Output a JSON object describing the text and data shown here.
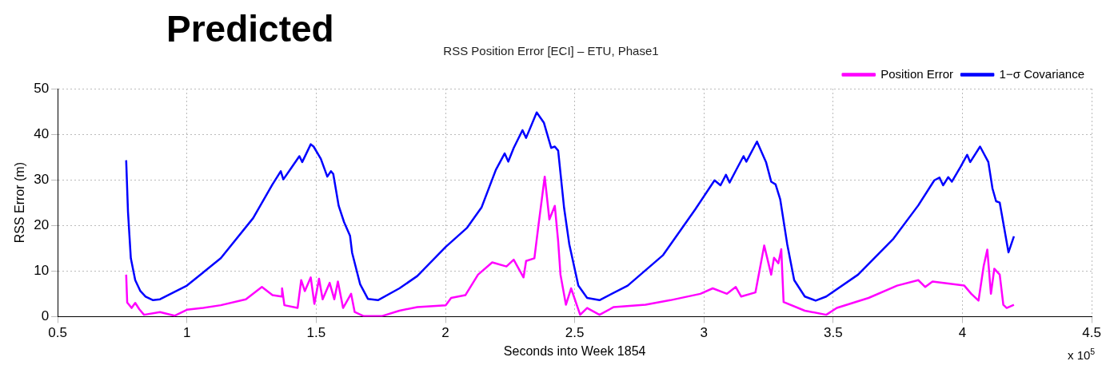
{
  "chart_data": {
    "type": "line",
    "title": "RSS Position Error [ECI] – ETU, Phase1",
    "xlabel": "Seconds into Week 1854",
    "ylabel": "RSS Error (m)",
    "annotations": [
      "Predicted",
      "x 10$^{5}$"
    ],
    "xlim": [
      0.5,
      4.5
    ],
    "xticks": [
      0.5,
      1,
      1.5,
      2,
      2.5,
      3,
      3.5,
      4,
      4.5
    ],
    "ylim": [
      0,
      50
    ],
    "yticks": [
      0,
      10,
      20,
      30,
      40,
      50
    ],
    "grid": true,
    "legend": "top right",
    "line_style": "solid",
    "series": [
      {
        "name": "Position Error",
        "color": "#ff00ff",
        "x": [
          0.765,
          0.769,
          0.786,
          0.8,
          0.816,
          0.834,
          0.896,
          0.952,
          1.0,
          1.062,
          1.131,
          1.228,
          1.29,
          1.331,
          1.366,
          1.368,
          1.377,
          1.428,
          1.442,
          1.456,
          1.479,
          1.493,
          1.511,
          1.525,
          1.552,
          1.57,
          1.584,
          1.604,
          1.635,
          1.649,
          1.684,
          1.753,
          1.822,
          1.891,
          2.001,
          2.022,
          2.077,
          2.126,
          2.181,
          2.236,
          2.264,
          2.302,
          2.312,
          2.344,
          2.36,
          2.384,
          2.402,
          2.423,
          2.436,
          2.445,
          2.466,
          2.486,
          2.521,
          2.548,
          2.596,
          2.651,
          2.774,
          2.87,
          2.986,
          3.034,
          3.089,
          3.123,
          3.144,
          3.199,
          3.233,
          3.26,
          3.271,
          3.288,
          3.299,
          3.308,
          3.39,
          3.473,
          3.514,
          3.637,
          3.747,
          3.829,
          3.856,
          3.884,
          4.007,
          4.034,
          4.062,
          4.082,
          4.096,
          4.11,
          4.123,
          4.144,
          4.158,
          4.171,
          4.199
        ],
        "values": [
          9.2,
          3.1,
          1.9,
          3,
          1.6,
          0.4,
          1,
          0.2,
          1.5,
          1.9,
          2.5,
          3.8,
          6.5,
          4.7,
          4.4,
          6.2,
          2.5,
          1.9,
          8,
          5.6,
          8.6,
          2.8,
          8.3,
          3.8,
          7.4,
          3.8,
          7.7,
          1.9,
          5,
          1,
          0.1,
          0.1,
          1.3,
          2.1,
          2.5,
          4.1,
          4.7,
          9.2,
          11.9,
          11,
          12.5,
          8.6,
          12.2,
          12.8,
          20.1,
          30.7,
          21.3,
          24.3,
          16.5,
          9.2,
          2.6,
          6.2,
          0.4,
          1.9,
          0.4,
          2.1,
          2.6,
          3.6,
          5,
          6.2,
          5,
          6.5,
          4.4,
          5.3,
          15.6,
          9.2,
          12.9,
          11.7,
          14.8,
          3.2,
          1.3,
          0.4,
          1.9,
          4.1,
          6.8,
          8,
          6.5,
          7.7,
          6.8,
          5,
          3.5,
          11.1,
          14.7,
          5,
          10.5,
          9.2,
          2.6,
          1.9,
          2.6
        ]
      },
      {
        "name": "1−σ Covariance",
        "color": "#0000ff",
        "x": [
          0.765,
          0.772,
          0.783,
          0.8,
          0.82,
          0.84,
          0.869,
          0.896,
          1.0,
          1.131,
          1.256,
          1.33,
          1.363,
          1.373,
          1.4,
          1.435,
          1.446,
          1.479,
          1.49,
          1.518,
          1.543,
          1.557,
          1.566,
          1.587,
          1.608,
          1.631,
          1.639,
          1.67,
          1.7,
          1.739,
          1.822,
          1.891,
          2.001,
          2.084,
          2.14,
          2.195,
          2.229,
          2.243,
          2.264,
          2.298,
          2.312,
          2.353,
          2.381,
          2.409,
          2.423,
          2.436,
          2.459,
          2.479,
          2.514,
          2.548,
          2.596,
          2.705,
          2.842,
          2.966,
          3.041,
          3.064,
          3.085,
          3.099,
          3.123,
          3.153,
          3.164,
          3.205,
          3.24,
          3.26,
          3.277,
          3.295,
          3.322,
          3.349,
          3.39,
          3.432,
          3.473,
          3.596,
          3.733,
          3.829,
          3.891,
          3.911,
          3.925,
          3.945,
          3.959,
          3.993,
          4.018,
          4.03,
          4.068,
          4.1,
          4.116,
          4.13,
          4.144,
          4.178,
          4.199
        ],
        "values": [
          34.3,
          23,
          12.8,
          8,
          5.6,
          4.4,
          3.6,
          3.8,
          6.8,
          12.8,
          21.6,
          28.9,
          31.9,
          30.1,
          32.3,
          35.2,
          33.9,
          37.8,
          37.3,
          34.6,
          30.7,
          31.9,
          31.3,
          24.3,
          20.7,
          17.7,
          14,
          7.1,
          3.9,
          3.6,
          6.2,
          8.9,
          15.3,
          19.5,
          24,
          32.2,
          35.8,
          34,
          37,
          40.9,
          39.2,
          44.8,
          42.5,
          37,
          37.3,
          36.4,
          23.8,
          15.9,
          6.8,
          4.1,
          3.6,
          6.8,
          13.5,
          23.5,
          29.9,
          28.8,
          31.1,
          29.4,
          32,
          35.2,
          34,
          38.4,
          33.9,
          29.6,
          29,
          25.7,
          15.9,
          8,
          4.4,
          3.5,
          4.4,
          9.2,
          17.1,
          24.4,
          29.9,
          30.5,
          28.8,
          30.6,
          29.6,
          32.9,
          35.5,
          33.9,
          37.3,
          33.9,
          28.1,
          25.3,
          25,
          14.1,
          17.6
        ]
      }
    ]
  }
}
